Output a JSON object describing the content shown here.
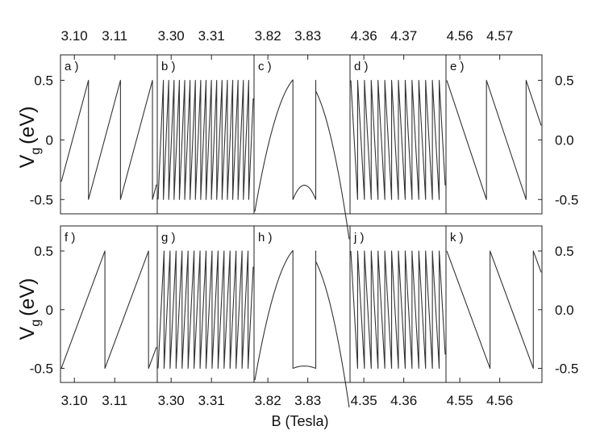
{
  "chart_data": {
    "type": "line",
    "xlabel": "B (Tesla)",
    "ylabel": "V",
    "ylabel_sub": "g",
    "ylabel_unit": "(eV)",
    "y_ticks_left": [
      "0.5",
      "0",
      "-0.5"
    ],
    "y_ticks_right": [
      "0.5",
      "0.0",
      "-0.5"
    ],
    "ylim": [
      -0.55,
      0.55
    ],
    "grid": false,
    "legend": "none",
    "rows": [
      {
        "axis_tick_labels": [
          {
            "panel": 0,
            "labels": [
              "3.10",
              "3.11"
            ]
          },
          {
            "panel": 1,
            "labels": [
              "3.30",
              "3.31"
            ]
          },
          {
            "panel": 2,
            "labels": [
              "3.82",
              "3.83"
            ]
          },
          {
            "panel": 3,
            "labels": [
              "4.36",
              "4.37"
            ]
          },
          {
            "panel": 4,
            "labels": [
              "4.56",
              "4.57"
            ]
          }
        ],
        "panels": [
          {
            "label": "a )",
            "pattern": "rising_sawtooth",
            "teeth": 3,
            "phase": 0.15,
            "first_partial": true
          },
          {
            "label": "b )",
            "pattern": "rising_sawtooth",
            "teeth": 18
          },
          {
            "label": "c )",
            "pattern": "dome_with_dip",
            "dip_min": -0.38
          },
          {
            "label": "d )",
            "pattern": "falling_sawtooth",
            "teeth": 14
          },
          {
            "label": "e )",
            "pattern": "falling_sawtooth",
            "teeth": 2.4
          }
        ]
      },
      {
        "axis_tick_labels": [
          {
            "panel": 0,
            "labels": [
              "3.10",
              "3.11"
            ]
          },
          {
            "panel": 1,
            "labels": [
              "3.30",
              "3.31"
            ]
          },
          {
            "panel": 2,
            "labels": [
              "3.82",
              "3.83"
            ]
          },
          {
            "panel": 3,
            "labels": [
              "4.35",
              "4.36"
            ]
          },
          {
            "panel": 4,
            "labels": [
              "4.55",
              "4.56"
            ]
          }
        ],
        "panels": [
          {
            "label": "f )",
            "pattern": "rising_sawtooth",
            "teeth": 2.2
          },
          {
            "label": "g )",
            "pattern": "rising_sawtooth",
            "teeth": 16
          },
          {
            "label": "h )",
            "pattern": "dome_with_dip",
            "dip_min": -0.48
          },
          {
            "label": "j )",
            "pattern": "falling_sawtooth",
            "teeth": 14
          },
          {
            "label": "k )",
            "pattern": "falling_sawtooth",
            "teeth": 2.2
          }
        ]
      }
    ]
  }
}
